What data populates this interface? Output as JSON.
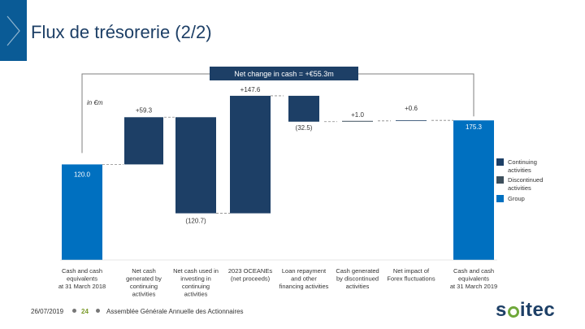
{
  "page": {
    "title": "Flux de trésorerie (2/2)",
    "footer": {
      "date": "26/07/2019",
      "page_number": "24",
      "text": "Assemblée Générale Annuelle des Actionnaires"
    },
    "logo": "soitec"
  },
  "colors": {
    "continuing": "#1d3f66",
    "discontinued": "#3d4f5c",
    "group": "#0070c0",
    "bracket": "#7f7f7f",
    "title": "#1d3f66"
  },
  "chart_data": {
    "type": "bar",
    "subtype": "waterfall",
    "unit_label": "in €m",
    "annotation": "Net change in cash = +€55.3m",
    "categories": [
      "Cash and cash equivalents at 31 March 2018",
      "Net cash generated by continuing activities",
      "Net cash used in investing in continuing activities",
      "2023 OCEANEs (net proceeds)",
      "Loan repayment and other financing activities",
      "Cash generated by discontinued activities",
      "Net impact of Forex fluctuations",
      "Cash and cash equivalents at 31 March 2019"
    ],
    "category_lines": [
      [
        "Cash and cash",
        "equivalents",
        "at 31 March 2018"
      ],
      [
        "Net cash",
        "generated by",
        "continuing",
        "activities"
      ],
      [
        "Net cash used in",
        "investing in",
        "continuing",
        "activities"
      ],
      [
        "2023 OCEANEs",
        "(net proceeds)"
      ],
      [
        "Loan repayment",
        "and other",
        "financing activities"
      ],
      [
        "Cash generated",
        "by discontinued",
        "activities"
      ],
      [
        "Net impact of",
        "Forex fluctuations"
      ],
      [
        "Cash and cash",
        "equivalents",
        "at 31 March 2019"
      ]
    ],
    "values": [
      120.0,
      59.3,
      -120.7,
      147.6,
      -32.5,
      1.0,
      0.6,
      175.3
    ],
    "labels": [
      "120.0",
      "+59.3",
      "(120.7)",
      "+147.6",
      "(32.5)",
      "+1.0",
      "+0.6",
      "175.3"
    ],
    "kinds": [
      "total",
      "continuing",
      "continuing",
      "continuing",
      "continuing",
      "discontinued",
      "continuing",
      "total"
    ],
    "legend": [
      "Continuing activities",
      "Discontinued activities",
      "Group"
    ]
  }
}
